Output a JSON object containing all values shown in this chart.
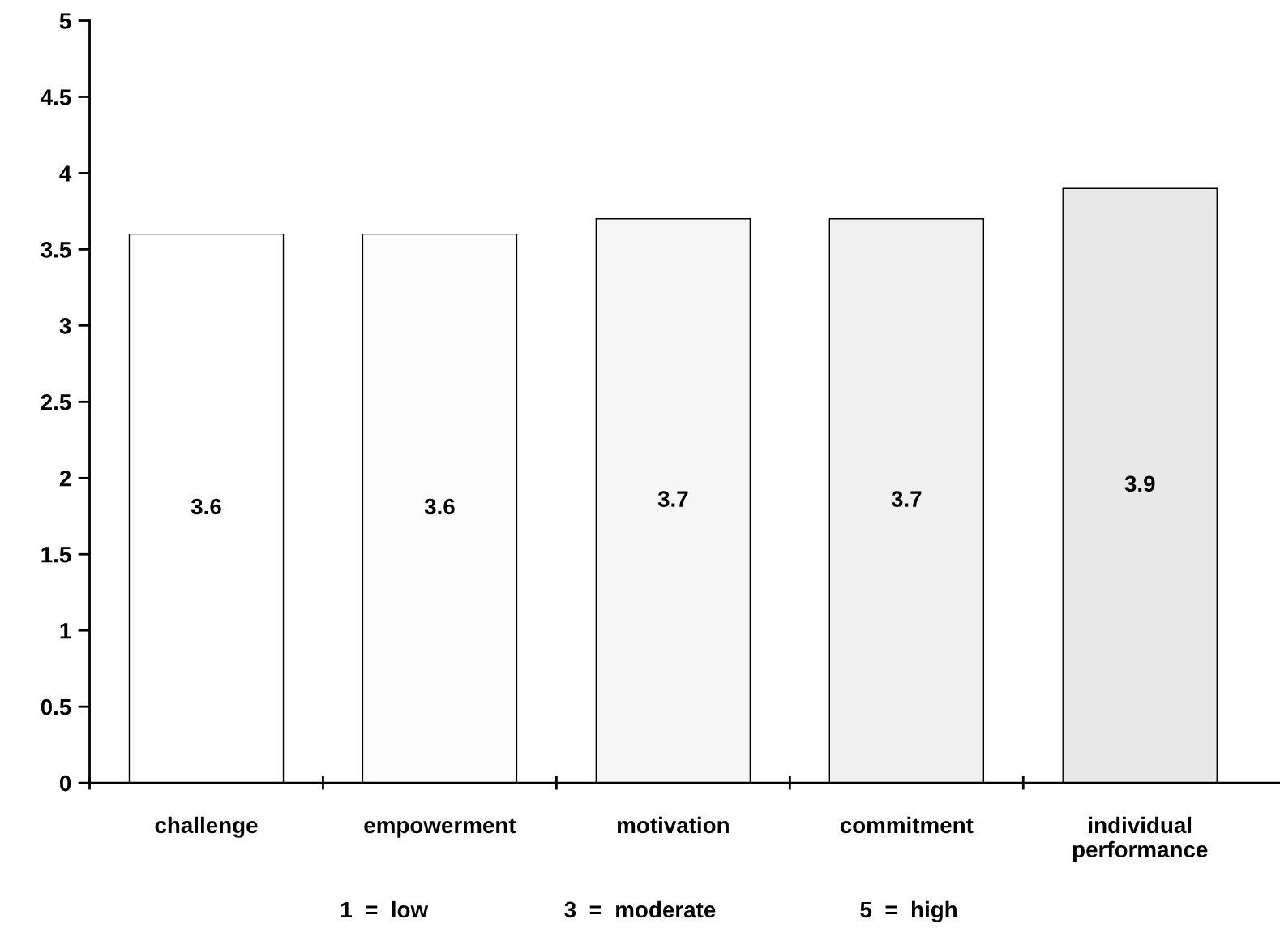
{
  "chart_data": {
    "type": "bar",
    "categories": [
      "challenge",
      "empowerment",
      "motivation",
      "commitment",
      "individual\nperformance"
    ],
    "values": [
      3.6,
      3.6,
      3.7,
      3.7,
      3.9
    ],
    "colors": [
      "#ffffff",
      "#fcfcfc",
      "#f6f6f6",
      "#f0f0f0",
      "#e8e8e8"
    ],
    "ylim": [
      0,
      5
    ],
    "yticks": [
      0,
      0.5,
      1,
      1.5,
      2,
      2.5,
      3,
      3.5,
      4,
      4.5,
      5
    ],
    "data_labels": true,
    "grid": false,
    "legend": false,
    "annotations": [
      "1  =  low",
      "3  =  moderate",
      "5  =  high"
    ]
  }
}
